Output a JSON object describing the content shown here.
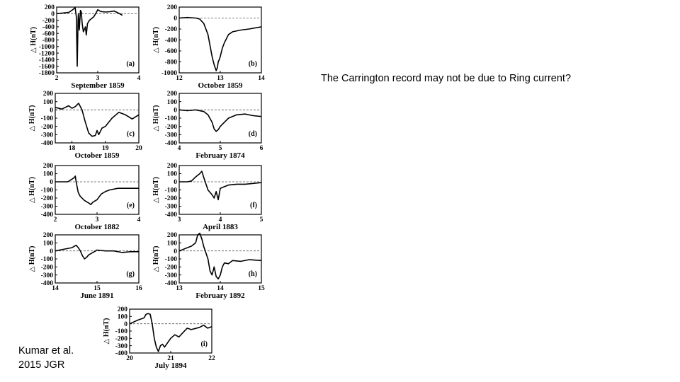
{
  "question_text": "The Carrington record may not be due to Ring current?",
  "citation": {
    "line1": "Kumar et al.",
    "line2": "2015 JGR"
  },
  "colors": {
    "line": "#000000",
    "baseline": "#555555",
    "background": "#ffffff"
  },
  "chart_data": [
    {
      "id": "a",
      "type": "line",
      "letter": "(a)",
      "title": "September 1859",
      "ylabel": "△ H(nT)",
      "xlim": [
        2,
        4
      ],
      "ylim": [
        -1800,
        200
      ],
      "xticks": [
        2,
        3,
        4
      ],
      "yticks": [
        200,
        0,
        -200,
        -400,
        -600,
        -800,
        -1000,
        -1200,
        -1400,
        -1600,
        -1800
      ],
      "zero_line": true,
      "x": [
        2.0,
        2.15,
        2.3,
        2.4,
        2.45,
        2.48,
        2.5,
        2.52,
        2.53,
        2.55,
        2.58,
        2.6,
        2.62,
        2.65,
        2.7,
        2.72,
        2.75,
        2.8,
        2.85,
        2.9,
        2.95,
        3.0,
        3.05,
        3.1,
        3.2,
        3.3,
        3.4,
        3.5,
        3.6
      ],
      "y": [
        0,
        20,
        40,
        130,
        180,
        -100,
        -1600,
        -200,
        0,
        -500,
        100,
        50,
        -300,
        -550,
        -400,
        -650,
        -300,
        -200,
        -150,
        -100,
        0,
        120,
        80,
        60,
        50,
        60,
        80,
        20,
        -50
      ]
    },
    {
      "id": "b",
      "type": "line",
      "letter": "(b)",
      "title": "October 1859",
      "ylabel": "△ H(nT)",
      "xlim": [
        12,
        14
      ],
      "ylim": [
        -1000,
        200
      ],
      "xticks": [
        12,
        13,
        14
      ],
      "yticks": [
        200,
        0,
        -200,
        -400,
        -600,
        -800,
        -1000
      ],
      "zero_line": true,
      "x": [
        12.0,
        12.2,
        12.4,
        12.5,
        12.6,
        12.7,
        12.75,
        12.8,
        12.85,
        12.9,
        12.93,
        12.95,
        12.98,
        13.0,
        13.05,
        13.1,
        13.2,
        13.3,
        13.5,
        13.7,
        14.0
      ],
      "y": [
        0,
        10,
        0,
        -20,
        -100,
        -300,
        -500,
        -700,
        -850,
        -960,
        -900,
        -800,
        -750,
        -700,
        -550,
        -450,
        -300,
        -250,
        -220,
        -200,
        -160
      ]
    },
    {
      "id": "c",
      "type": "line",
      "letter": "(c)",
      "title": "October 1859",
      "ylabel": "△ H(nT)",
      "xlim": [
        17.5,
        20
      ],
      "ylim": [
        -400,
        200
      ],
      "xticks": [
        18,
        19,
        20
      ],
      "yticks": [
        200,
        100,
        0,
        -100,
        -200,
        -300,
        -400
      ],
      "zero_line": true,
      "x": [
        17.5,
        17.7,
        17.9,
        18.0,
        18.1,
        18.2,
        18.3,
        18.4,
        18.5,
        18.6,
        18.7,
        18.75,
        18.8,
        18.9,
        19.0,
        19.1,
        19.2,
        19.4,
        19.6,
        19.8,
        20.0
      ],
      "y": [
        30,
        10,
        50,
        20,
        40,
        80,
        0,
        -150,
        -280,
        -320,
        -310,
        -250,
        -300,
        -220,
        -200,
        -150,
        -100,
        -30,
        -60,
        -110,
        -60
      ]
    },
    {
      "id": "d",
      "type": "line",
      "letter": "(d)",
      "title": "February 1874",
      "ylabel": "△ H(nT)",
      "xlim": [
        4,
        6
      ],
      "ylim": [
        -400,
        200
      ],
      "xticks": [
        4,
        5,
        6
      ],
      "yticks": [
        200,
        100,
        0,
        -100,
        -200,
        -300,
        -400
      ],
      "zero_line": true,
      "x": [
        4.0,
        4.2,
        4.4,
        4.6,
        4.7,
        4.8,
        4.85,
        4.9,
        4.95,
        5.0,
        5.1,
        5.2,
        5.4,
        5.6,
        5.8,
        6.0
      ],
      "y": [
        0,
        -10,
        0,
        -20,
        -60,
        -150,
        -230,
        -260,
        -240,
        -200,
        -150,
        -100,
        -60,
        -50,
        -70,
        -80
      ]
    },
    {
      "id": "e",
      "type": "line",
      "letter": "(e)",
      "title": "October 1882",
      "ylabel": "△ H(nT)",
      "xlim": [
        2,
        4
      ],
      "ylim": [
        -400,
        200
      ],
      "xticks": [
        2,
        3,
        4
      ],
      "yticks": [
        200,
        100,
        0,
        -100,
        -200,
        -300,
        -400
      ],
      "zero_line": true,
      "x": [
        2.0,
        2.3,
        2.45,
        2.48,
        2.5,
        2.55,
        2.6,
        2.7,
        2.8,
        2.85,
        2.9,
        3.0,
        3.1,
        3.2,
        3.3,
        3.5,
        3.7,
        4.0
      ],
      "y": [
        0,
        0,
        50,
        70,
        0,
        -130,
        -180,
        -230,
        -260,
        -280,
        -250,
        -220,
        -150,
        -120,
        -100,
        -80,
        -80,
        -80
      ]
    },
    {
      "id": "f",
      "type": "line",
      "letter": "(f)",
      "title": "April 1883",
      "ylabel": "△ H(nT)",
      "xlim": [
        3,
        5
      ],
      "ylim": [
        -400,
        200
      ],
      "xticks": [
        3,
        4,
        5
      ],
      "yticks": [
        200,
        100,
        0,
        -100,
        -200,
        -300,
        -400
      ],
      "zero_line": true,
      "x": [
        3.0,
        3.2,
        3.3,
        3.4,
        3.5,
        3.55,
        3.6,
        3.7,
        3.8,
        3.85,
        3.9,
        3.95,
        4.0,
        4.1,
        4.2,
        4.4,
        4.6,
        4.8,
        5.0
      ],
      "y": [
        0,
        0,
        10,
        60,
        100,
        130,
        50,
        -100,
        -160,
        -200,
        -120,
        -220,
        -80,
        -60,
        -40,
        -30,
        -30,
        -20,
        -10
      ]
    },
    {
      "id": "g",
      "type": "line",
      "letter": "(g)",
      "title": "June 1891",
      "ylabel": "△ H(nT)",
      "xlim": [
        14,
        16
      ],
      "ylim": [
        -400,
        200
      ],
      "xticks": [
        14,
        15,
        16
      ],
      "yticks": [
        200,
        100,
        0,
        -100,
        -200,
        -300,
        -400
      ],
      "zero_line": true,
      "x": [
        14.0,
        14.2,
        14.4,
        14.5,
        14.55,
        14.6,
        14.65,
        14.7,
        14.75,
        14.8,
        14.9,
        15.0,
        15.2,
        15.4,
        15.6,
        15.8,
        16.0
      ],
      "y": [
        0,
        20,
        40,
        70,
        40,
        0,
        -60,
        -100,
        -80,
        -50,
        -20,
        10,
        0,
        0,
        -20,
        -10,
        -10
      ]
    },
    {
      "id": "h",
      "type": "line",
      "letter": "(h)",
      "title": "February 1892",
      "ylabel": "△ H(nT)",
      "xlim": [
        13,
        15
      ],
      "ylim": [
        -400,
        200
      ],
      "xticks": [
        13,
        14,
        15
      ],
      "yticks": [
        200,
        100,
        0,
        -100,
        -200,
        -300,
        -400
      ],
      "zero_line": true,
      "x": [
        13.0,
        13.2,
        13.3,
        13.4,
        13.45,
        13.5,
        13.55,
        13.6,
        13.7,
        13.75,
        13.8,
        13.85,
        13.9,
        13.95,
        14.0,
        14.05,
        14.1,
        14.2,
        14.3,
        14.5,
        14.7,
        15.0
      ],
      "y": [
        0,
        40,
        60,
        100,
        200,
        220,
        150,
        50,
        -100,
        -250,
        -300,
        -200,
        -320,
        -350,
        -300,
        -200,
        -150,
        -160,
        -120,
        -130,
        -110,
        -120
      ]
    },
    {
      "id": "i",
      "type": "line",
      "letter": "(i)",
      "title": "July 1894",
      "ylabel": "△ H(nT)",
      "xlim": [
        20,
        22
      ],
      "ylim": [
        -400,
        200
      ],
      "xticks": [
        20,
        21,
        22
      ],
      "yticks": [
        200,
        100,
        0,
        -100,
        -200,
        -300,
        -400
      ],
      "zero_line": true,
      "x": [
        20.0,
        20.2,
        20.35,
        20.4,
        20.45,
        20.5,
        20.55,
        20.6,
        20.65,
        20.7,
        20.75,
        20.8,
        20.85,
        20.9,
        21.0,
        21.1,
        21.2,
        21.3,
        21.4,
        21.5,
        21.7,
        21.8,
        21.9,
        22.0
      ],
      "y": [
        0,
        50,
        80,
        130,
        140,
        130,
        0,
        -200,
        -320,
        -380,
        -300,
        -280,
        -320,
        -280,
        -200,
        -150,
        -180,
        -120,
        -60,
        -80,
        -50,
        -20,
        -60,
        -40
      ]
    }
  ]
}
